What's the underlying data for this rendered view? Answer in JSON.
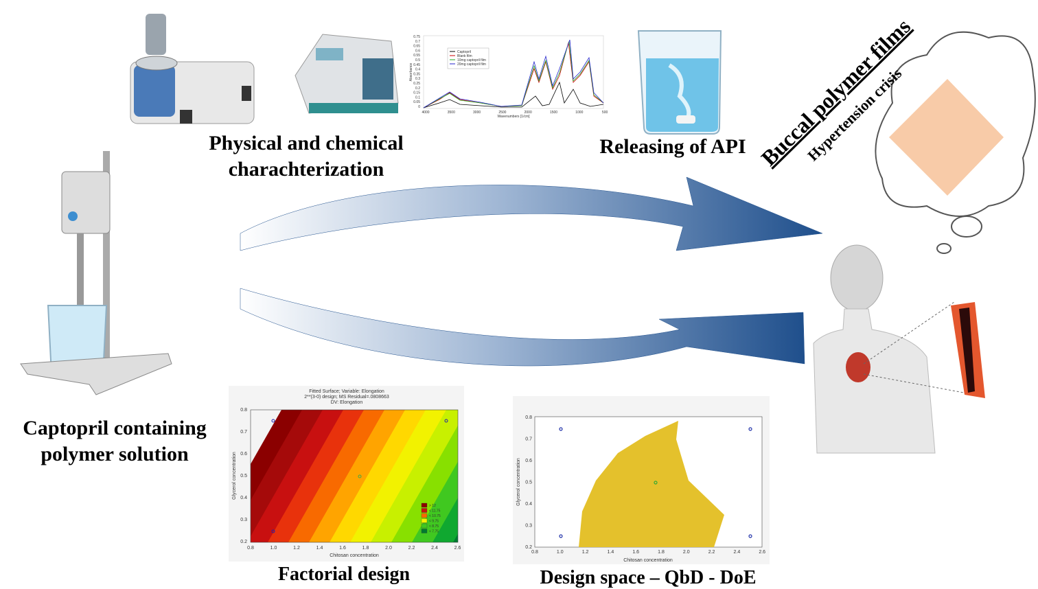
{
  "characterization": {
    "lines": [
      "Physical and chemical",
      "charachterization"
    ]
  },
  "release": {
    "label": "Releasing of API"
  },
  "product": {
    "title": "Buccal polymer films",
    "subtitle": "Hypertension crisis"
  },
  "solution": {
    "lines": [
      "Captopril containing",
      "polymer solution"
    ]
  },
  "ftir": {
    "legend": [
      "Captopril",
      "Blank film",
      "10mg captopril film",
      "20mg captopril film"
    ],
    "xlabel": "Wavenumbers [1/cm]",
    "ylabel": "Absorbance",
    "xticks": [
      "4000",
      "3500",
      "3000",
      "2500",
      "2000",
      "1500",
      "1000",
      "500"
    ],
    "yticks": [
      "0.75",
      "0.7",
      "0.65",
      "0.6",
      "0.55",
      "0.5",
      "0.45",
      "0.4",
      "0.35",
      "0.3",
      "0.25",
      "0.2",
      "0.15",
      "0.1",
      "0.05",
      "0"
    ]
  },
  "factorial": {
    "title": [
      "Fitted Surface; Variable: Elongation",
      "2**(3-0) design; MS Residual=.0808663",
      "DV: Elongation"
    ],
    "xlabel": "Chitosan concentration",
    "ylabel": "Glycerol concentration",
    "xticks": [
      "0.8",
      "1.0",
      "1.2",
      "1.4",
      "1.6",
      "1.8",
      "2.0",
      "2.2",
      "2.4",
      "2.6"
    ],
    "yticks": [
      "0.8",
      "0.7",
      "0.6",
      "0.5",
      "0.4",
      "0.3",
      "0.2"
    ],
    "legend": [
      "> 12",
      "< 11.75",
      "< 10.75",
      "< 9.75",
      "< 8.75",
      "< 7.75"
    ],
    "caption": "Factorial design"
  },
  "design_space": {
    "xlabel": "Chitosan concentration",
    "ylabel": "Glycerol concentration",
    "xticks": [
      "0.8",
      "1.0",
      "1.2",
      "1.4",
      "1.6",
      "1.8",
      "2.0",
      "2.2",
      "2.4",
      "2.6"
    ],
    "yticks": [
      "0.8",
      "0.7",
      "0.6",
      "0.5",
      "0.4",
      "0.3",
      "0.2"
    ],
    "caption": "Design space – QbD - DoE"
  }
}
